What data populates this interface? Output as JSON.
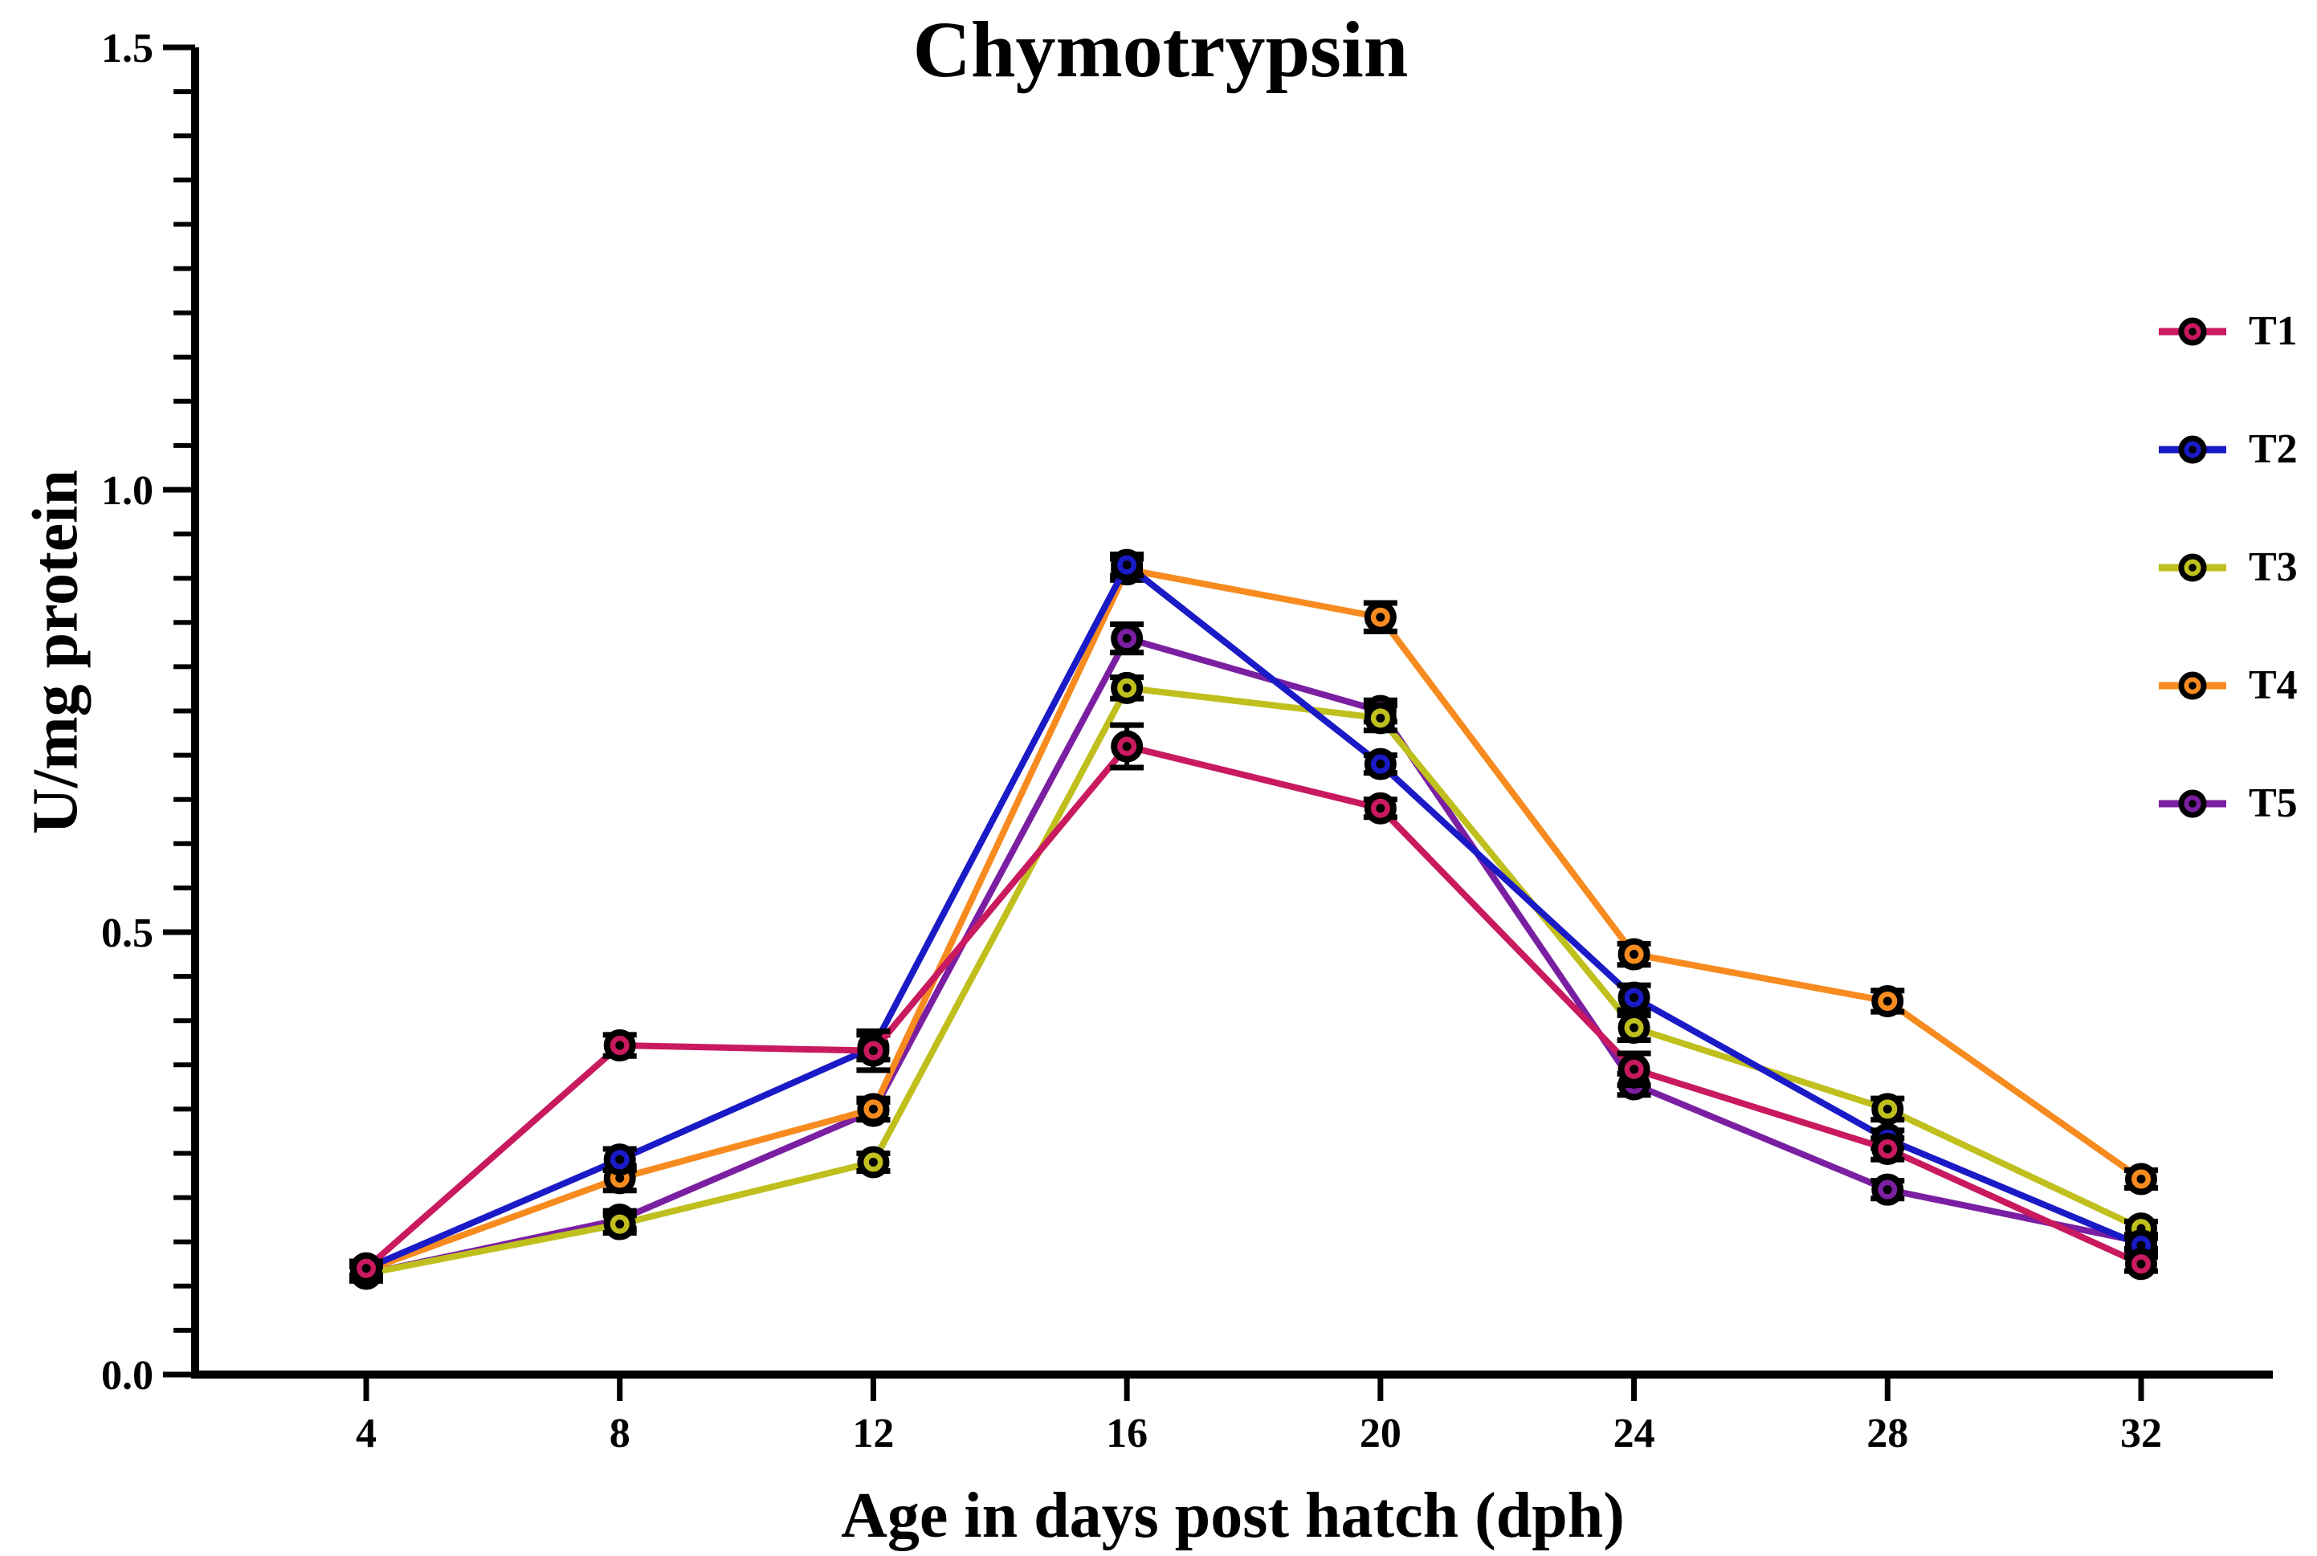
{
  "page": {
    "background_color": "#FFFFFF",
    "text_color": "#000000"
  },
  "chart_data": {
    "type": "line",
    "title": "Chymotrypsin",
    "xlabel": "Age in days post hatch (dph)",
    "ylabel": "U/mg protein",
    "x": [
      4,
      8,
      12,
      16,
      20,
      24,
      28,
      32
    ],
    "x_tick_labels": [
      "4",
      "8",
      "12",
      "16",
      "20",
      "24",
      "28",
      "32"
    ],
    "ylim": [
      0,
      1.5
    ],
    "yticks_major": [
      0.0,
      0.5,
      1.0,
      1.5
    ],
    "ytick_labels": [
      "0.0",
      "0.5",
      "1.0",
      "1.5"
    ],
    "ytick_minor_step": 0.05,
    "grid": false,
    "legend_position": "right",
    "marker_style": "circle-colored-fill-black-ring-black-center-dot",
    "error_bars": true,
    "axis_color": "#000000",
    "series": [
      {
        "name": "T1",
        "color": "#C9195F",
        "values": [
          0.12,
          0.372,
          0.366,
          0.71,
          0.64,
          0.345,
          0.255,
          0.125
        ],
        "errors": [
          0.008,
          0.012,
          0.022,
          0.024,
          0.01,
          0.018,
          0.012,
          0.008
        ]
      },
      {
        "name": "T2",
        "color": "#1A1AC6",
        "values": [
          0.12,
          0.243,
          0.37,
          0.915,
          0.69,
          0.426,
          0.266,
          0.146
        ],
        "errors": [
          0.008,
          0.012,
          0.014,
          0.012,
          0.01,
          0.014,
          0.01,
          0.008
        ]
      },
      {
        "name": "T3",
        "color": "#BFBF1D",
        "values": [
          0.114,
          0.17,
          0.24,
          0.776,
          0.742,
          0.392,
          0.3,
          0.165
        ],
        "errors": [
          0.008,
          0.01,
          0.01,
          0.012,
          0.014,
          0.014,
          0.012,
          0.008
        ]
      },
      {
        "name": "T4",
        "color": "#F78B1F",
        "values": [
          0.118,
          0.222,
          0.3,
          0.91,
          0.856,
          0.475,
          0.422,
          0.221
        ],
        "errors": [
          0.008,
          0.014,
          0.012,
          0.012,
          0.016,
          0.012,
          0.012,
          0.01
        ]
      },
      {
        "name": "T5",
        "color": "#7B1FA2",
        "values": [
          0.114,
          0.175,
          0.298,
          0.832,
          0.75,
          0.328,
          0.209,
          0.15
        ],
        "errors": [
          0.008,
          0.01,
          0.01,
          0.016,
          0.012,
          0.012,
          0.01,
          0.008
        ]
      }
    ],
    "draw_order": [
      "T5",
      "T4",
      "T3",
      "T2",
      "T1"
    ]
  }
}
